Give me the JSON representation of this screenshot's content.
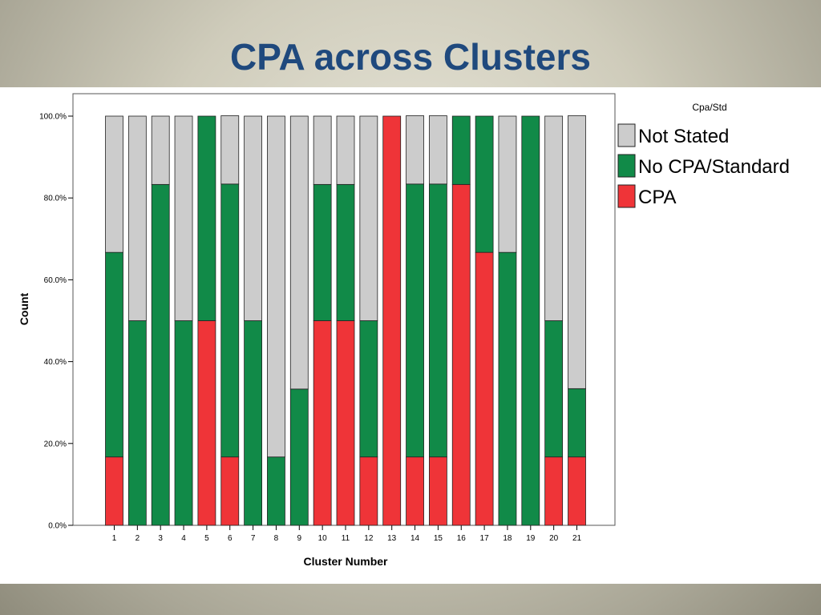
{
  "slide": {
    "title": "CPA across Clusters"
  },
  "colors": {
    "Not Stated": "#cccccc",
    "No CPA/Standard": "#118a48",
    "CPA": "#ef3438"
  },
  "chart_data": {
    "type": "bar",
    "stacked": true,
    "xlabel": "Cluster Number",
    "ylabel": "Count",
    "ylim": [
      0,
      100
    ],
    "yticks": [
      "0.0%",
      "20.0%",
      "40.0%",
      "60.0%",
      "80.0%",
      "100.0%"
    ],
    "categories": [
      "1",
      "2",
      "3",
      "4",
      "5",
      "6",
      "7",
      "8",
      "9",
      "10",
      "11",
      "12",
      "13",
      "14",
      "15",
      "16",
      "17",
      "18",
      "19",
      "20",
      "21"
    ],
    "legend": {
      "title": "Cpa/Std",
      "placement": "right",
      "entries": [
        "Not Stated",
        "No CPA/Standard",
        "CPA"
      ]
    },
    "series": [
      {
        "name": "CPA",
        "values": [
          16.7,
          0,
          0,
          0,
          50,
          16.7,
          0,
          0,
          0,
          50,
          50,
          16.7,
          100,
          16.7,
          16.7,
          83.3,
          66.7,
          0,
          0,
          16.7,
          16.7
        ]
      },
      {
        "name": "No CPA/Standard",
        "values": [
          50,
          50,
          83.3,
          50,
          50,
          66.7,
          50,
          16.7,
          33.3,
          33.3,
          33.3,
          33.3,
          0,
          66.7,
          66.7,
          16.7,
          33.3,
          66.7,
          100,
          33.3,
          16.7
        ]
      },
      {
        "name": "Not Stated",
        "values": [
          33.3,
          50,
          16.7,
          50,
          0,
          16.7,
          50,
          83.3,
          66.7,
          16.7,
          16.7,
          50,
          0,
          16.7,
          16.7,
          0,
          0,
          33.3,
          0,
          50,
          66.7
        ]
      }
    ]
  }
}
